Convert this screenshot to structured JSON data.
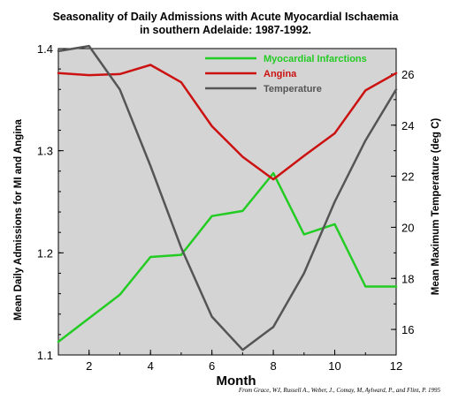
{
  "chart_data": {
    "type": "line",
    "title_lines": [
      "Seasonality of Daily Admissions with Acute Myocardial Ischaemia",
      "in southern Adelaide: 1987-1992."
    ],
    "xlabel": "Month",
    "ylabel_left": "Mean Daily Admissions for MI and Angina",
    "ylabel_right": "Mean Maximum Temperature (deg C)",
    "x": [
      1,
      2,
      3,
      4,
      5,
      6,
      7,
      8,
      9,
      10,
      11,
      12
    ],
    "xlim": [
      1,
      12
    ],
    "xticks": [
      2,
      4,
      6,
      8,
      10,
      12
    ],
    "ylim_left": [
      1.1,
      1.4
    ],
    "yticks_left": [
      1.1,
      1.2,
      1.3,
      1.4
    ],
    "ylim_right": [
      15,
      27
    ],
    "yticks_right": [
      16,
      18,
      20,
      22,
      24,
      26
    ],
    "series": [
      {
        "name": "Myocardial Infarctions",
        "axis": "left",
        "color": "#22cc22",
        "values": [
          1.113,
          1.136,
          1.159,
          1.196,
          1.198,
          1.236,
          1.241,
          1.278,
          1.218,
          1.228,
          1.167,
          1.167
        ]
      },
      {
        "name": "Angina",
        "axis": "left",
        "color": "#cc1111",
        "values": [
          1.376,
          1.374,
          1.375,
          1.384,
          1.367,
          1.324,
          1.294,
          1.272,
          1.295,
          1.317,
          1.359,
          1.376
        ]
      },
      {
        "name": "Temperature",
        "axis": "right",
        "color": "#555555",
        "values": [
          26.9,
          27.1,
          25.4,
          22.4,
          19.2,
          16.5,
          15.2,
          16.1,
          18.2,
          21.0,
          23.4,
          25.4
        ]
      }
    ],
    "legend_position": "top-right",
    "grid": false,
    "plot_background": "#d4d4d4",
    "credit": "From Grace, WJ, Russell A., Weber, J., Comay, M, Aylward, P., and Flint, P. 1995"
  }
}
